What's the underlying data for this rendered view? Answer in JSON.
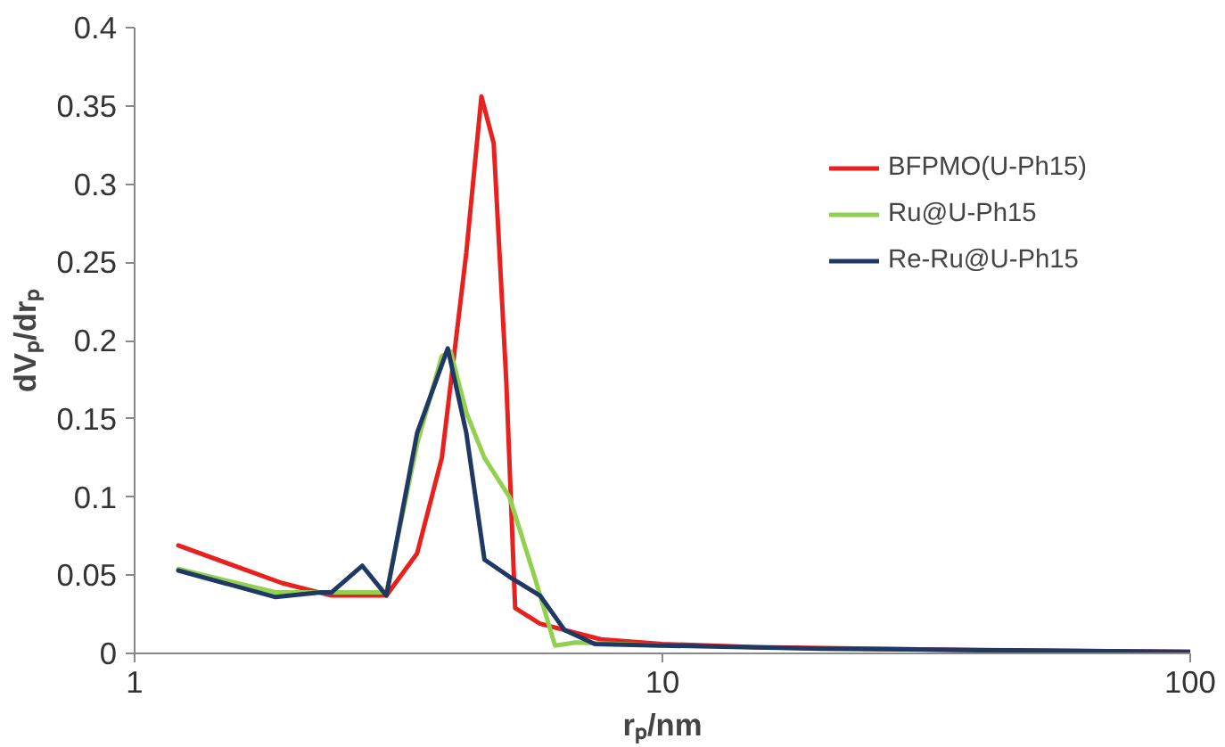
{
  "chart_data": {
    "type": "line",
    "xlabel": "rₚ/nm",
    "ylabel": "dVₚ/drₚ",
    "log": "x",
    "xlim": [
      1,
      100
    ],
    "xticks": [
      1,
      10,
      100
    ],
    "ylim": [
      0,
      0.4
    ],
    "yticks": [
      0,
      0.05,
      0.1,
      0.15,
      0.2,
      0.25,
      0.3,
      0.35,
      0.4
    ],
    "grid": false,
    "legend": "top right",
    "marker": "none",
    "line_style": "solid",
    "series": [
      {
        "name": "BFPMO(U-Ph15)",
        "color": "#e8201e",
        "x": [
          1.21,
          1.9,
          2.36,
          3.0,
          3.43,
          3.82,
          4.25,
          4.54,
          4.79,
          5.06,
          5.26,
          5.86,
          7.65,
          10,
          15,
          25,
          40,
          100
        ],
        "values": [
          0.069,
          0.045,
          0.037,
          0.037,
          0.064,
          0.125,
          0.256,
          0.356,
          0.326,
          0.174,
          0.029,
          0.019,
          0.009,
          0.006,
          0.004,
          0.003,
          0.002,
          0.001
        ]
      },
      {
        "name": "Ru@U-Ph15",
        "color": "#92d050",
        "x": [
          1.21,
          1.85,
          2.36,
          3.0,
          3.43,
          3.82,
          3.97,
          4.25,
          4.6,
          5.13,
          5.7,
          6.26,
          6.85,
          10
        ],
        "values": [
          0.054,
          0.039,
          0.039,
          0.039,
          0.134,
          0.19,
          0.193,
          0.154,
          0.125,
          0.1,
          0.051,
          0.005,
          0.007,
          0.005
        ]
      },
      {
        "name": "Re-Ru@U-Ph15",
        "color": "#1f3864",
        "x": [
          1.21,
          1.85,
          2.25,
          2.36,
          2.7,
          3.0,
          3.43,
          3.92,
          4.25,
          4.6,
          5.13,
          5.86,
          6.52,
          7.45,
          10,
          20,
          100
        ],
        "values": [
          0.053,
          0.036,
          0.039,
          0.039,
          0.056,
          0.037,
          0.141,
          0.195,
          0.141,
          0.06,
          0.049,
          0.037,
          0.015,
          0.006,
          0.005,
          0.003,
          0.001
        ]
      }
    ]
  }
}
